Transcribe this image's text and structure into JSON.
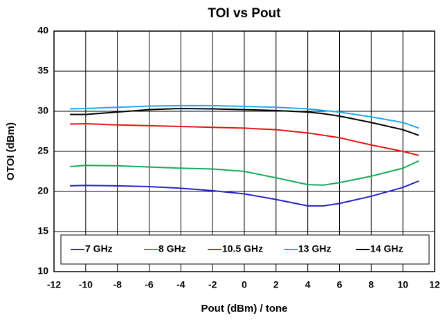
{
  "chart_data": {
    "type": "line",
    "title": "TOI vs Pout",
    "xlabel": "Pout (dBm) / tone",
    "ylabel": "OTOI (dBm)",
    "x": [
      -11,
      -10,
      -8,
      -6,
      -4,
      -2,
      0,
      2,
      4,
      5,
      6,
      8,
      10,
      11
    ],
    "series": [
      {
        "name": "7 GHz",
        "color": "#2424c8",
        "values": [
          20.7,
          20.75,
          20.7,
          20.6,
          20.4,
          20.1,
          19.7,
          19.0,
          18.2,
          18.2,
          18.5,
          19.4,
          20.5,
          21.3
        ]
      },
      {
        "name": "8 GHz",
        "color": "#1aa85a",
        "values": [
          23.1,
          23.25,
          23.2,
          23.05,
          22.9,
          22.8,
          22.5,
          21.7,
          20.85,
          20.8,
          21.1,
          21.9,
          22.9,
          23.8
        ]
      },
      {
        "name": "10.5 GHz",
        "color": "#e81414",
        "values": [
          28.4,
          28.45,
          28.3,
          28.2,
          28.1,
          28.0,
          27.9,
          27.7,
          27.3,
          27.0,
          26.7,
          25.8,
          25.0,
          24.5
        ]
      },
      {
        "name": "13 GHz",
        "color": "#22a8e8",
        "values": [
          30.3,
          30.35,
          30.5,
          30.65,
          30.7,
          30.7,
          30.6,
          30.5,
          30.3,
          30.1,
          29.9,
          29.3,
          28.6,
          27.9
        ]
      },
      {
        "name": "14 GHz",
        "color": "#000000",
        "values": [
          29.6,
          29.6,
          29.9,
          30.2,
          30.35,
          30.3,
          30.2,
          30.1,
          29.9,
          29.7,
          29.4,
          28.6,
          27.7,
          27.0
        ]
      }
    ],
    "xlim": [
      -12,
      12
    ],
    "xticks": [
      -12,
      -10,
      -8,
      -6,
      -4,
      -2,
      0,
      2,
      4,
      6,
      8,
      10,
      12
    ],
    "ylim": [
      10,
      40
    ],
    "yticks": [
      10,
      15,
      20,
      25,
      30,
      35,
      40
    ],
    "grid": true,
    "legend": "bottom"
  }
}
